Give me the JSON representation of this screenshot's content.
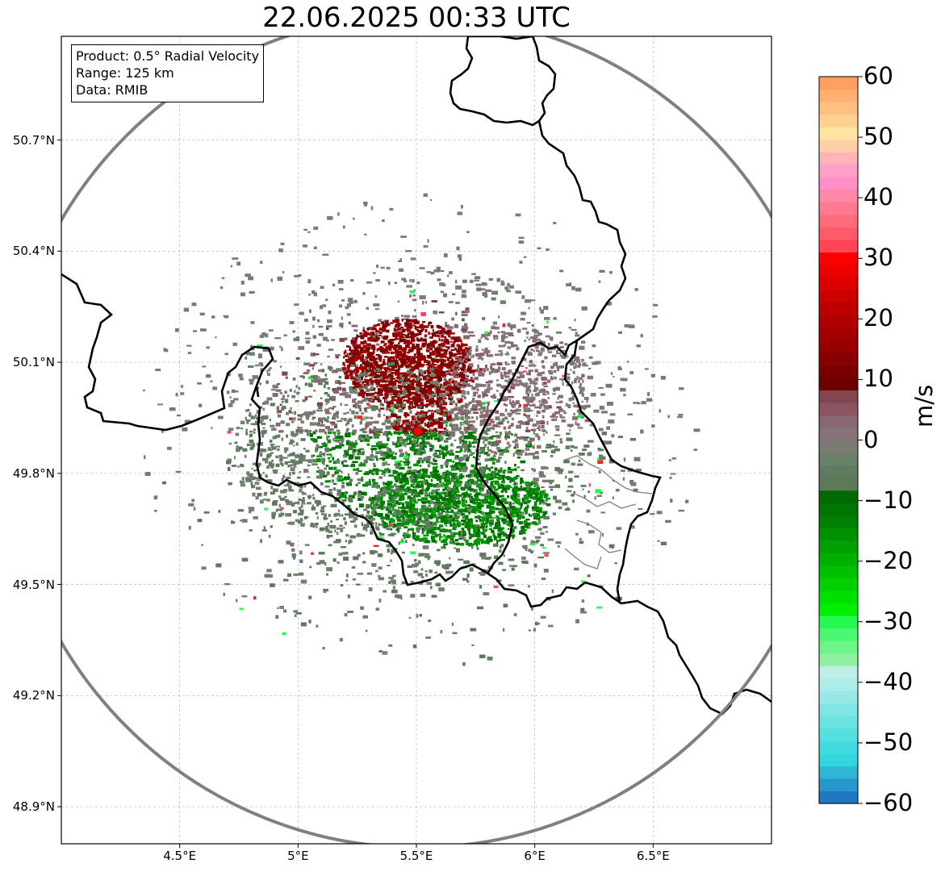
{
  "title": "22.06.2025 00:33 UTC",
  "info": {
    "product": "Product: 0.5° Radial Velocity",
    "range": "Range: 125 km",
    "data": "Data: RMIB"
  },
  "map": {
    "lon_range": [
      4.0,
      7.0
    ],
    "lat_range": [
      48.8,
      50.98
    ],
    "radar_site": {
      "lon": 5.505,
      "lat": 49.914
    },
    "range_ring_km": 125,
    "y_ticks": [
      {
        "label": "50.7°N",
        "lat": 50.7
      },
      {
        "label": "50.4°N",
        "lat": 50.4
      },
      {
        "label": "50.1°N",
        "lat": 50.1
      },
      {
        "label": "49.8°N",
        "lat": 49.8
      },
      {
        "label": "49.5°N",
        "lat": 49.5
      },
      {
        "label": "49.2°N",
        "lat": 49.2
      },
      {
        "label": "48.9°N",
        "lat": 48.9
      }
    ],
    "x_ticks": [
      {
        "label": "4.5°E",
        "lon": 4.5
      },
      {
        "label": "5°E",
        "lon": 5.0
      },
      {
        "label": "5.5°E",
        "lon": 5.5
      },
      {
        "label": "6°E",
        "lon": 6.0
      },
      {
        "label": "6.5°E",
        "lon": 6.5
      }
    ],
    "grid": true
  },
  "colorbar": {
    "unit": "m/s",
    "min": -60,
    "max": 60,
    "ticks": [
      {
        "label": "60",
        "value": 60
      },
      {
        "label": "50",
        "value": 50
      },
      {
        "label": "40",
        "value": 40
      },
      {
        "label": "30",
        "value": 30
      },
      {
        "label": "20",
        "value": 20
      },
      {
        "label": "10",
        "value": 10
      },
      {
        "label": "0",
        "value": 0
      },
      {
        "label": "−10",
        "value": -10
      },
      {
        "label": "−20",
        "value": -20
      },
      {
        "label": "−30",
        "value": -30
      },
      {
        "label": "−40",
        "value": -40
      },
      {
        "label": "−50",
        "value": -50
      },
      {
        "label": "−60",
        "value": -60
      }
    ],
    "colors": [
      "#1f78c1",
      "#2897cc",
      "#2fb5d6",
      "#30d6dc",
      "#40dcdd",
      "#55e0df",
      "#6be3e1",
      "#80e6e3",
      "#96e9e6",
      "#aeecea",
      "#bfeee9",
      "#8ff0a3",
      "#6ef58a",
      "#4cf870",
      "#26fa4e",
      "#00f000",
      "#00e000",
      "#00d000",
      "#00c000",
      "#00b000",
      "#00a000",
      "#009000",
      "#008000",
      "#007500",
      "#006a00",
      "#5a7a5a",
      "#607c60",
      "#6a806a",
      "#7b7b73",
      "#86737a",
      "#8a6670",
      "#8a5560",
      "#834650",
      "#6e0000",
      "#7a0000",
      "#880000",
      "#960000",
      "#a30000",
      "#b00000",
      "#bd0000",
      "#cc0000",
      "#dc0000",
      "#ee0000",
      "#ff0000",
      "#ff4455",
      "#ff5a6a",
      "#ff6a7c",
      "#ff7a90",
      "#ff88a8",
      "#ff8fc8",
      "#ffa0c8",
      "#ffb4b8",
      "#ffd0a8",
      "#ffe3a0",
      "#ffd090",
      "#ffc080",
      "#ffb070",
      "#ffa060"
    ]
  }
}
